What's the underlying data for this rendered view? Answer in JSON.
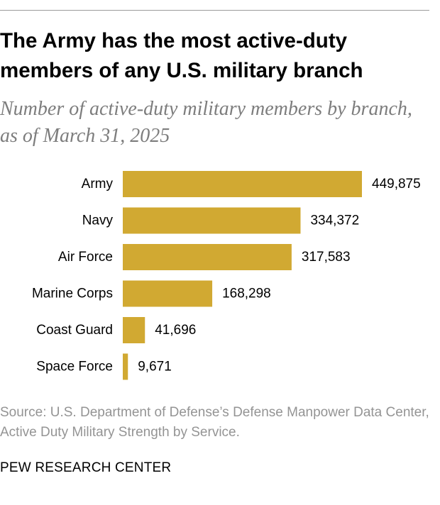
{
  "title": "The Army has the most active-duty members of any U.S. military branch",
  "subtitle": "Number of active-duty military members by branch, as of March 31, 2025",
  "source": "Source: U.S. Department of Defense’s Defense Manpower Data Center, Active Duty Military Strength by Service.",
  "footer": "PEW RESEARCH CENTER",
  "colors": {
    "bar": "#D1A932",
    "label": "#000000",
    "source_text": "#949494",
    "subtitle_text": "#7d7d7d"
  },
  "chart_data": {
    "type": "bar",
    "orientation": "horizontal",
    "categories": [
      "Army",
      "Navy",
      "Air Force",
      "Marine Corps",
      "Coast Guard",
      "Space Force"
    ],
    "values": [
      449875,
      334372,
      317583,
      168298,
      41696,
      9671
    ],
    "value_labels": [
      "449,875",
      "334,372",
      "317,583",
      "168,298",
      "41,696",
      "9,671"
    ],
    "xlim": [
      0,
      449875
    ],
    "grid": false,
    "legend": "none"
  }
}
